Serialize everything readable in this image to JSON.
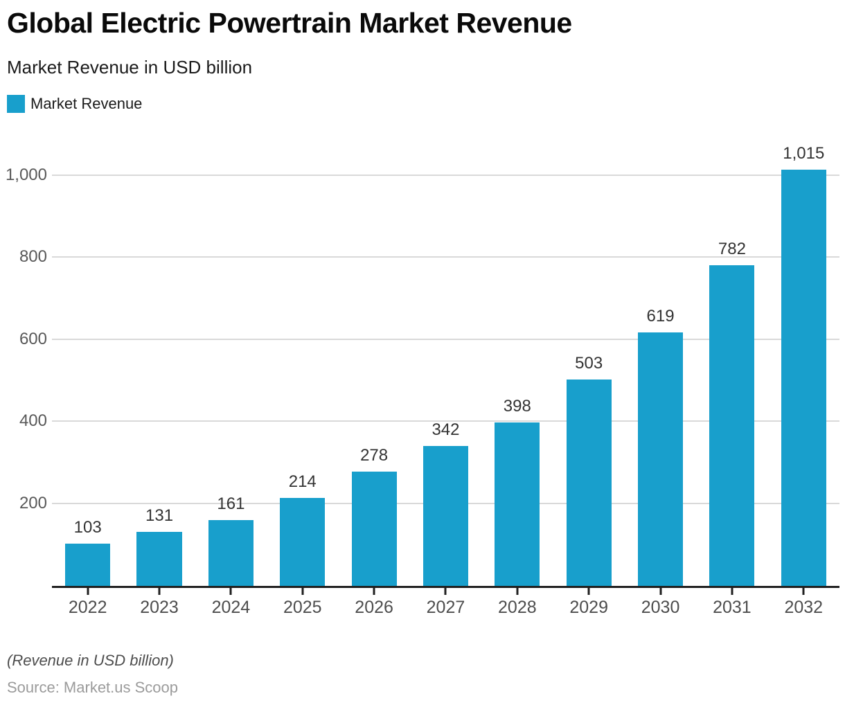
{
  "title": "Global Electric Powertrain Market Revenue",
  "subtitle": "Market Revenue in USD billion",
  "legend": {
    "label": "Market Revenue",
    "color": "#189fcc"
  },
  "footer": {
    "note": "(Revenue in USD billion)",
    "source": "Source: Market.us Scoop"
  },
  "chart_data": {
    "type": "bar",
    "title": "Global Electric Powertrain Market Revenue",
    "subtitle": "Market Revenue in USD billion",
    "series_name": "Market Revenue",
    "categories": [
      "2022",
      "2023",
      "2024",
      "2025",
      "2026",
      "2027",
      "2028",
      "2029",
      "2030",
      "2031",
      "2032"
    ],
    "values": [
      103,
      131,
      161,
      214,
      278,
      342,
      398,
      503,
      619,
      782,
      1015
    ],
    "value_labels": [
      "103",
      "131",
      "161",
      "214",
      "278",
      "342",
      "398",
      "503",
      "619",
      "782",
      "1,015"
    ],
    "xlabel": "",
    "ylabel": "",
    "yticks": [
      200,
      400,
      600,
      800,
      1000
    ],
    "ytick_labels": [
      "200",
      "400",
      "600",
      "800",
      "1,000"
    ],
    "ylim": [
      0,
      1108
    ],
    "grid": true,
    "legend_position": "top-left",
    "bar_color": "#189fcc",
    "gridline_color": "#d9d9d9",
    "axis_color": "#1f1f1f"
  }
}
